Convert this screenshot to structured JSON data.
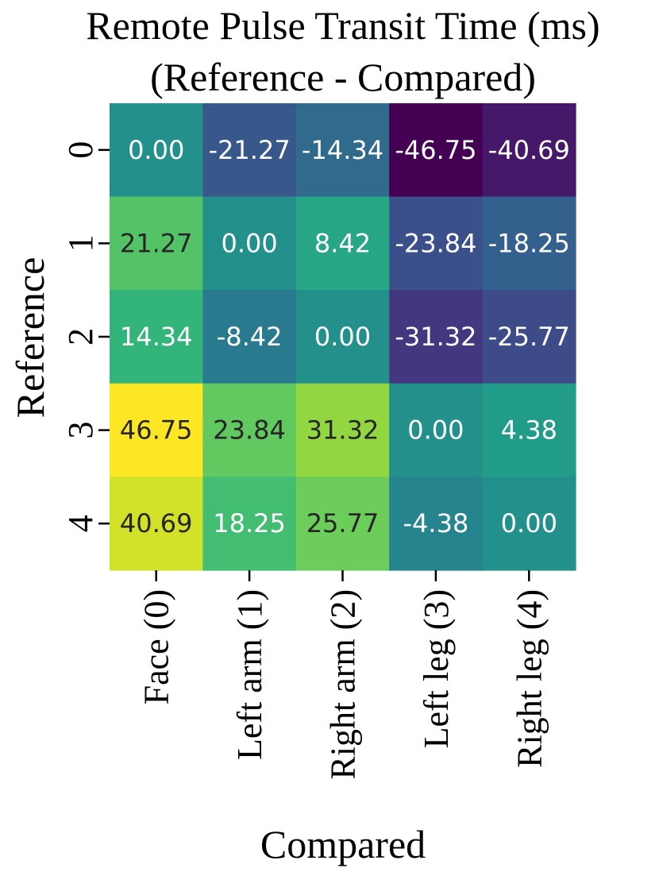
{
  "chart_data": {
    "type": "heatmap",
    "title": [
      "Remote Pulse Transit Time (ms)",
      "(Reference - Compared)"
    ],
    "xlabel": "Compared",
    "ylabel": "Reference",
    "x_categories": [
      "Face (0)",
      "Left arm (1)",
      "Right arm (2)",
      "Left leg (3)",
      "Right leg (4)"
    ],
    "y_categories": [
      "0",
      "1",
      "2",
      "3",
      "4"
    ],
    "values": [
      [
        0.0,
        -21.27,
        -14.34,
        -46.75,
        -40.69
      ],
      [
        21.27,
        0.0,
        8.42,
        -23.84,
        -18.25
      ],
      [
        14.34,
        -8.42,
        0.0,
        -31.32,
        -25.77
      ],
      [
        46.75,
        23.84,
        31.32,
        0.0,
        4.38
      ],
      [
        40.69,
        18.25,
        25.77,
        -4.38,
        0.0
      ]
    ],
    "value_format": "0.00",
    "colormap": "viridis",
    "vmin": -46.75,
    "vmax": 46.75,
    "colorbar": false,
    "grid": false
  }
}
